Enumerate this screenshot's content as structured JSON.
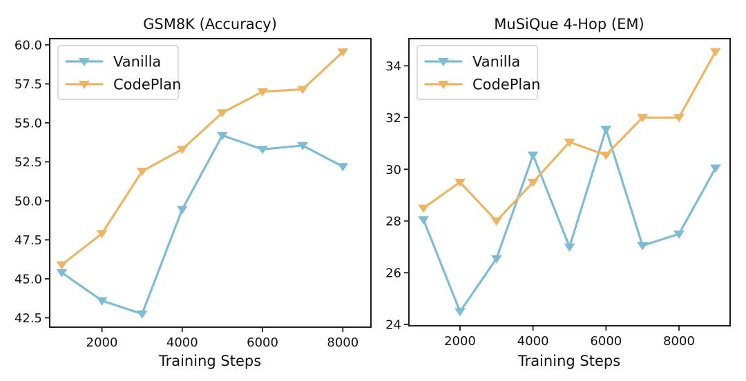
{
  "figure": {
    "background": "#ffffff",
    "style": {
      "axis_color": "#1c1c1c",
      "text_color": "#111111",
      "legend_border": "#cccccc",
      "legend_fill_alpha": 0.85
    }
  },
  "chart_data": [
    {
      "type": "line",
      "title": "GSM8K (Accuracy)",
      "xlabel": "Training Steps",
      "ylabel": "",
      "x": [
        1000,
        2000,
        3000,
        4000,
        5000,
        6000,
        7000,
        8000
      ],
      "xlim": [
        700,
        8700
      ],
      "ylim": [
        41.9,
        60.4
      ],
      "grid": false,
      "legend_position": "upper left",
      "marker": "triangle-down",
      "xticks": [
        {
          "v": 2000,
          "label": "2000"
        },
        {
          "v": 4000,
          "label": "4000"
        },
        {
          "v": 6000,
          "label": "6000"
        },
        {
          "v": 8000,
          "label": "8000"
        }
      ],
      "yticks": [
        {
          "v": 42.5,
          "label": "42.5"
        },
        {
          "v": 45.0,
          "label": "45.0"
        },
        {
          "v": 47.5,
          "label": "47.5"
        },
        {
          "v": 50.0,
          "label": "50.0"
        },
        {
          "v": 52.5,
          "label": "52.5"
        },
        {
          "v": 55.0,
          "label": "55.0"
        },
        {
          "v": 57.5,
          "label": "57.5"
        },
        {
          "v": 60.0,
          "label": "60.0"
        }
      ],
      "series": [
        {
          "name": "Vanilla",
          "color": "#7ebcd5",
          "values": [
            45.4,
            43.6,
            42.75,
            49.45,
            54.2,
            53.3,
            53.55,
            52.2
          ]
        },
        {
          "name": "CodePlan",
          "color": "#ecb463",
          "values": [
            45.9,
            47.9,
            51.9,
            53.3,
            55.65,
            57.0,
            57.15,
            59.55
          ]
        }
      ]
    },
    {
      "type": "line",
      "title": "MuSiQue 4-Hop (EM)",
      "xlabel": "Training Steps",
      "ylabel": "",
      "x": [
        1000,
        2000,
        3000,
        4000,
        5000,
        6000,
        7000,
        8000,
        9000
      ],
      "xlim": [
        600,
        9400
      ],
      "ylim": [
        23.95,
        35.05
      ],
      "grid": false,
      "legend_position": "upper left",
      "marker": "triangle-down",
      "xticks": [
        {
          "v": 2000,
          "label": "2000"
        },
        {
          "v": 4000,
          "label": "4000"
        },
        {
          "v": 6000,
          "label": "6000"
        },
        {
          "v": 8000,
          "label": "8000"
        }
      ],
      "yticks": [
        {
          "v": 24,
          "label": "24"
        },
        {
          "v": 26,
          "label": "26"
        },
        {
          "v": 28,
          "label": "28"
        },
        {
          "v": 30,
          "label": "30"
        },
        {
          "v": 32,
          "label": "32"
        },
        {
          "v": 34,
          "label": "34"
        }
      ],
      "series": [
        {
          "name": "Vanilla",
          "color": "#7ebcd5",
          "values": [
            28.05,
            24.5,
            26.55,
            30.55,
            27.0,
            31.55,
            27.05,
            27.5,
            30.05
          ]
        },
        {
          "name": "CodePlan",
          "color": "#ecb463",
          "values": [
            28.5,
            29.5,
            28.0,
            29.5,
            31.05,
            30.55,
            32.0,
            32.0,
            34.55
          ]
        }
      ]
    }
  ]
}
